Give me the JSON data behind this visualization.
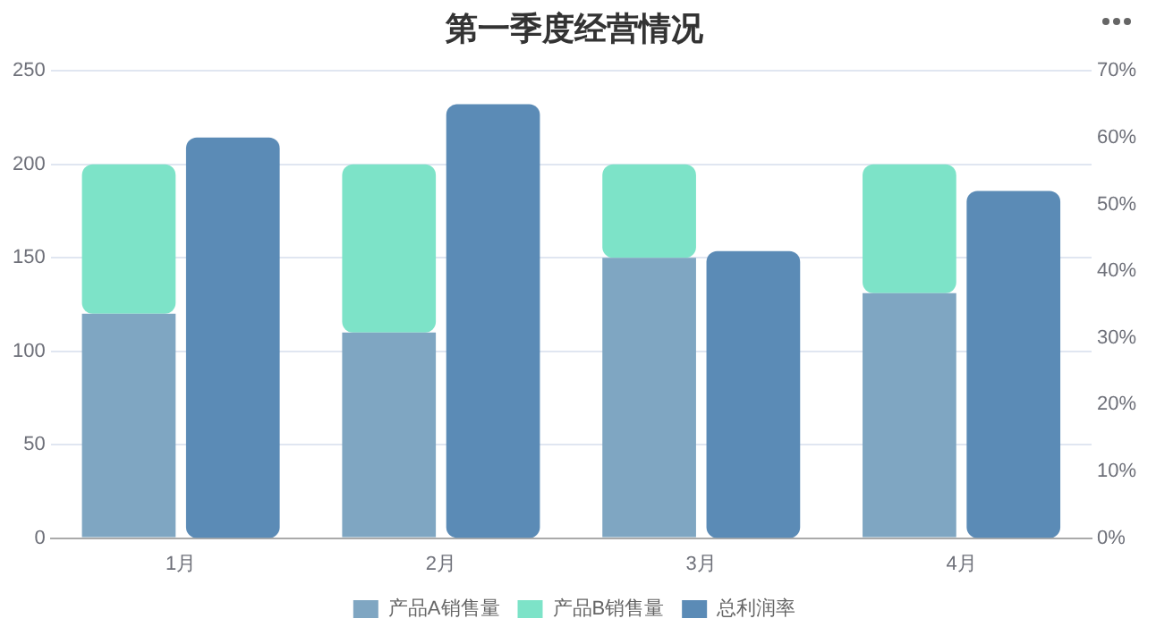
{
  "chart_data": {
    "type": "bar",
    "title": "第一季度经营情况",
    "categories": [
      "1月",
      "2月",
      "3月",
      "4月"
    ],
    "stacked": true,
    "series": [
      {
        "name": "产品A销售量",
        "color": "#7fa6c2",
        "values": [
          120,
          110,
          150,
          131
        ]
      },
      {
        "name": "产品B销售量",
        "color": "#7de3c8",
        "values": [
          80,
          90,
          50,
          69
        ]
      },
      {
        "name": "总利润率",
        "color": "#5b8bb6",
        "values": [
          60,
          65,
          43,
          52
        ],
        "axis": "y2"
      }
    ],
    "ylim": [
      0,
      250
    ],
    "yticks": [
      0,
      50,
      100,
      150,
      200,
      250
    ],
    "y2lim": [
      0,
      70
    ],
    "y2ticks": [
      {
        "value": 0,
        "label": "0%"
      },
      {
        "value": 10,
        "label": "10%"
      },
      {
        "value": 20,
        "label": "20%"
      },
      {
        "value": 30,
        "label": "30%"
      },
      {
        "value": 40,
        "label": "40%"
      },
      {
        "value": 50,
        "label": "50%"
      },
      {
        "value": 60,
        "label": "60%"
      },
      {
        "value": 70,
        "label": "70%"
      }
    ],
    "grid": "y",
    "legend": "bottom"
  }
}
